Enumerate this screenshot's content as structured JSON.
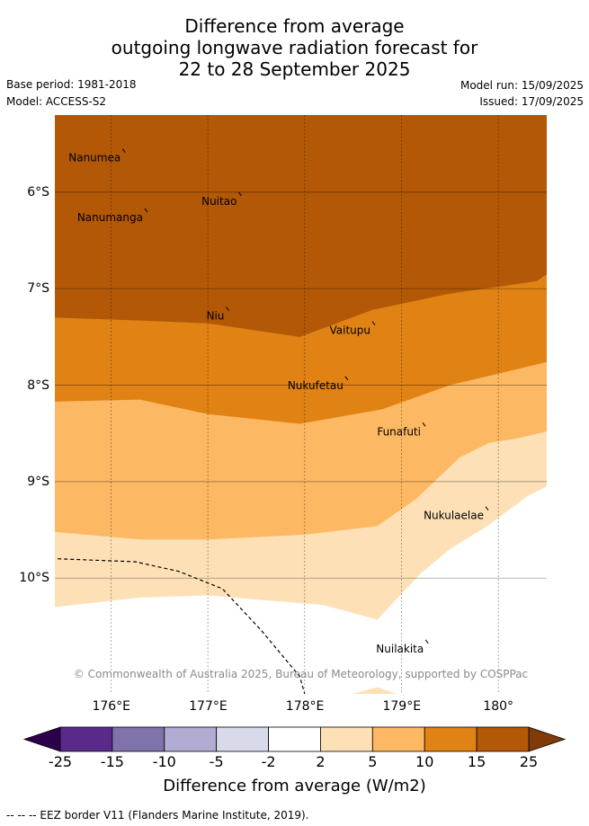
{
  "header": {
    "title_lines": [
      "Difference from average",
      "outgoing longwave radiation forecast for",
      "22 to 28 September 2025"
    ],
    "base_period": "Base period: 1981-2018",
    "model": "Model: ACCESS-S2",
    "model_run": "Model run: 15/09/2025",
    "issued": "Issued: 17/09/2025"
  },
  "map": {
    "lon_range": [
      175.42,
      180.5
    ],
    "lat_range": [
      -11.2,
      -5.2
    ],
    "lon_ticks": [
      {
        "value": 176,
        "label": "176°E"
      },
      {
        "value": 177,
        "label": "177°E"
      },
      {
        "value": 178,
        "label": "178°E"
      },
      {
        "value": 179,
        "label": "179°E"
      },
      {
        "value": 180,
        "label": "180°"
      }
    ],
    "lat_ticks": [
      {
        "value": -6,
        "label": "6°S"
      },
      {
        "value": -7,
        "label": "7°S"
      },
      {
        "value": -8,
        "label": "8°S"
      },
      {
        "value": -9,
        "label": "9°S"
      },
      {
        "value": -10,
        "label": "10°S"
      }
    ],
    "grid": true,
    "colors": {
      "band_15_25": "#b35806",
      "band_10_15": "#e08214",
      "band_5_10": "#fdb863",
      "band_2_5": "#fee0b6",
      "band_neutral": "#ffffff"
    },
    "contours": {
      "c15": [
        [
          175.42,
          -7.3
        ],
        [
          176.3,
          -7.33
        ],
        [
          177.0,
          -7.36
        ],
        [
          177.95,
          -7.5
        ],
        [
          178.7,
          -7.22
        ],
        [
          179.5,
          -7.05
        ],
        [
          180.0,
          -6.98
        ],
        [
          180.4,
          -6.92
        ],
        [
          180.5,
          -6.85
        ]
      ],
      "c10": [
        [
          175.42,
          -8.17
        ],
        [
          176.3,
          -8.15
        ],
        [
          177.0,
          -8.3
        ],
        [
          177.95,
          -8.4
        ],
        [
          178.8,
          -8.25
        ],
        [
          179.5,
          -8.0
        ],
        [
          180.0,
          -7.88
        ],
        [
          180.5,
          -7.76
        ]
      ],
      "c5": [
        [
          175.42,
          -9.52
        ],
        [
          176.3,
          -9.6
        ],
        [
          177.0,
          -9.6
        ],
        [
          178.0,
          -9.55
        ],
        [
          178.75,
          -9.46
        ],
        [
          179.15,
          -9.18
        ],
        [
          179.6,
          -8.75
        ],
        [
          179.9,
          -8.6
        ],
        [
          180.2,
          -8.55
        ],
        [
          180.5,
          -8.48
        ]
      ],
      "c2": [
        [
          175.42,
          -10.3
        ],
        [
          176.3,
          -10.2
        ],
        [
          177.0,
          -10.18
        ],
        [
          178.2,
          -10.28
        ],
        [
          178.75,
          -10.43
        ],
        [
          179.2,
          -9.95
        ],
        [
          179.5,
          -9.7
        ],
        [
          179.9,
          -9.45
        ],
        [
          180.3,
          -9.15
        ],
        [
          180.5,
          -9.05
        ]
      ],
      "blob_bottom": [
        [
          178.5,
          -11.2
        ],
        [
          178.75,
          -11.13
        ],
        [
          178.95,
          -11.2
        ]
      ]
    },
    "eez_border": [
      [
        175.45,
        -9.8
      ],
      [
        176.25,
        -9.83
      ],
      [
        176.7,
        -9.93
      ],
      [
        177.15,
        -10.11
      ],
      [
        177.55,
        -10.54
      ],
      [
        177.95,
        -11.02
      ],
      [
        178.0,
        -11.2
      ]
    ],
    "places": [
      {
        "name": "Nanumea",
        "lon": 176.1,
        "lat": -5.68
      },
      {
        "name": "Nuitao",
        "lon": 177.3,
        "lat": -6.13
      },
      {
        "name": "Nanumanga",
        "lon": 176.33,
        "lat": -6.3
      },
      {
        "name": "Niu",
        "lon": 177.17,
        "lat": -7.32
      },
      {
        "name": "Vaitupu",
        "lon": 178.68,
        "lat": -7.47
      },
      {
        "name": "Nukufetau",
        "lon": 178.4,
        "lat": -8.04
      },
      {
        "name": "Funafuti",
        "lon": 179.2,
        "lat": -8.52
      },
      {
        "name": "Nukulaelae",
        "lon": 179.85,
        "lat": -9.39
      },
      {
        "name": "Nuilakita",
        "lon": 179.23,
        "lat": -10.77
      }
    ],
    "copyright": "© Commonwealth of Australia 2025, Bureau of Meteorology, supported by COSPPac"
  },
  "colorbar": {
    "ticks": [
      "-25",
      "-15",
      "-10",
      "-5",
      "-2",
      "2",
      "5",
      "10",
      "15",
      "25"
    ],
    "colors": [
      "#5a2a8a",
      "#8073ac",
      "#b2abd2",
      "#d8daeb",
      "#ffffff",
      "#fee0b6",
      "#fdb863",
      "#e08214",
      "#b35806"
    ],
    "under_color": "#2d004b",
    "over_color": "#7f3b08",
    "label": "Difference from average (W/m2)"
  },
  "footer": {
    "eez_legend": "--  --  -- EEZ border V11 (Flanders Marine Institute, 2019)."
  }
}
